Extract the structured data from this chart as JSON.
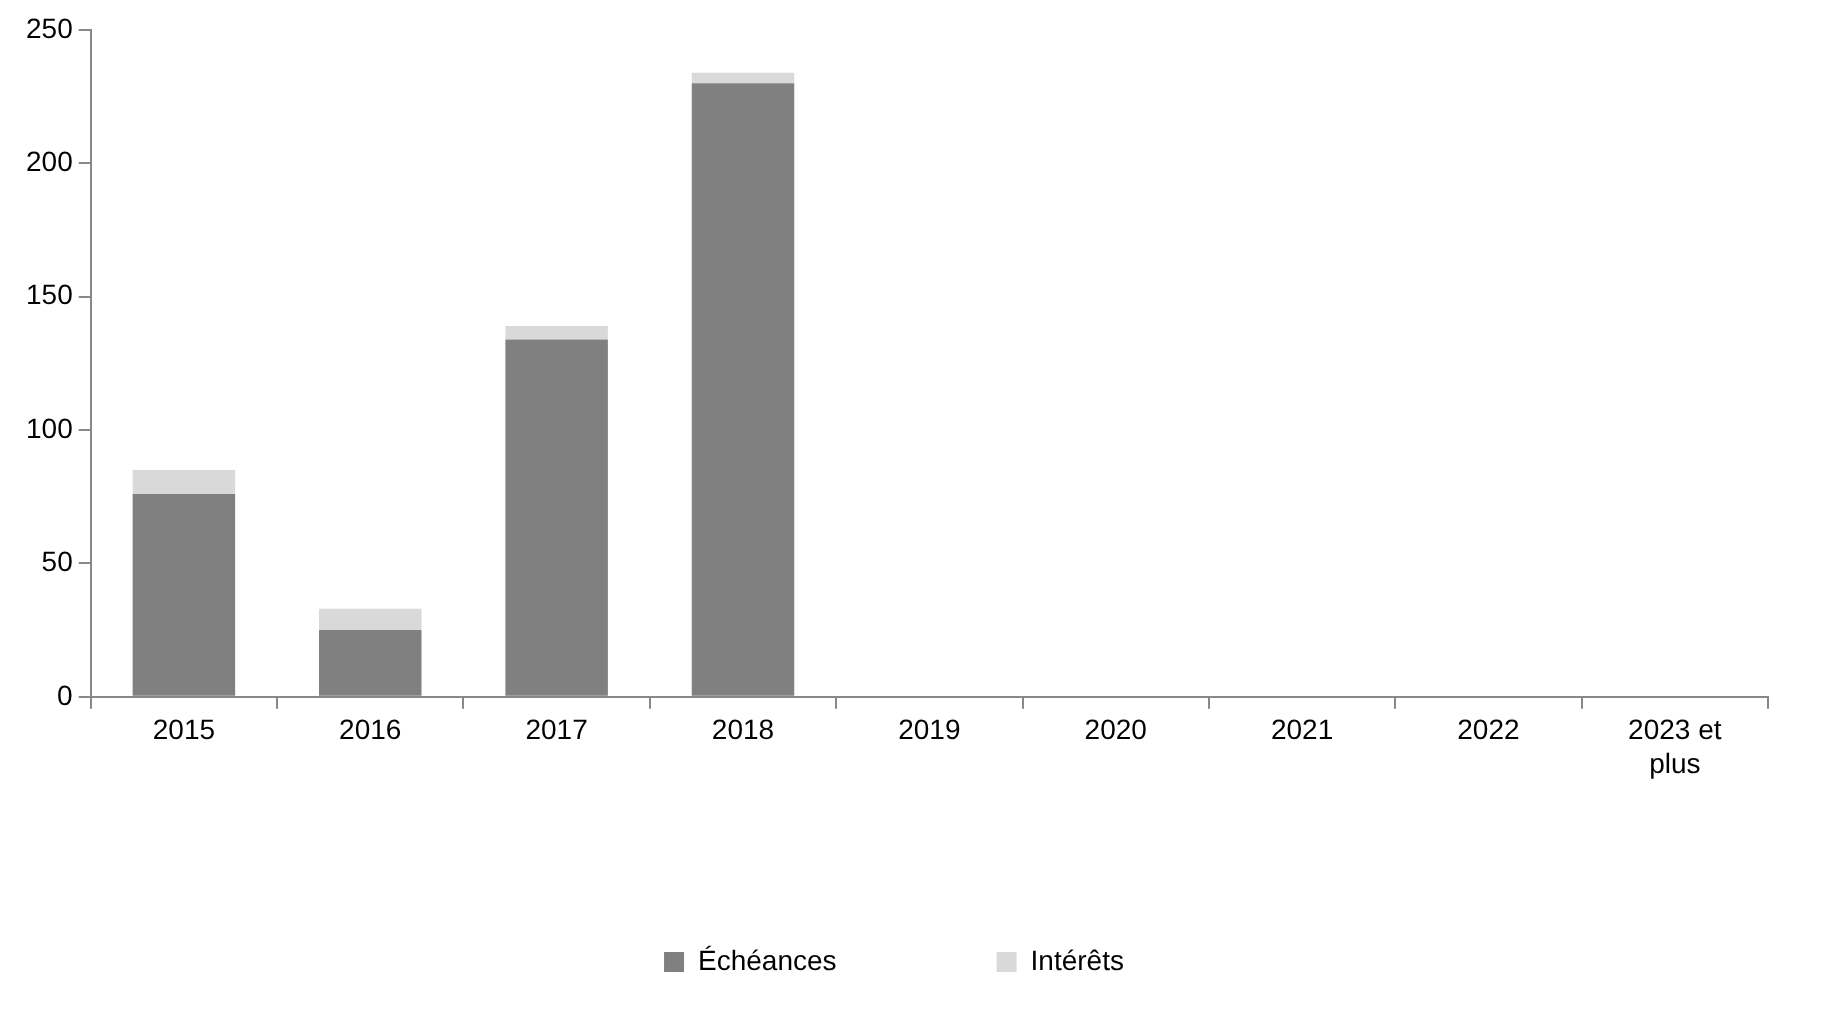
{
  "chart_data": {
    "type": "bar",
    "stacked": true,
    "categories": [
      "2015",
      "2016",
      "2017",
      "2018",
      "2019",
      "2020",
      "2021",
      "2022",
      "2023 et plus"
    ],
    "series": [
      {
        "name": "Échéances",
        "color": "#808080",
        "values": [
          76,
          25,
          134,
          230,
          0,
          0,
          0,
          0,
          0
        ]
      },
      {
        "name": "Intérêts",
        "color": "#d9d9d9",
        "values": [
          9,
          8,
          5,
          4,
          0,
          0,
          0,
          0,
          0
        ]
      }
    ],
    "ylim": [
      0,
      250
    ],
    "yticks": [
      0,
      50,
      100,
      150,
      200,
      250
    ],
    "grid": false,
    "legend": "bottom"
  }
}
